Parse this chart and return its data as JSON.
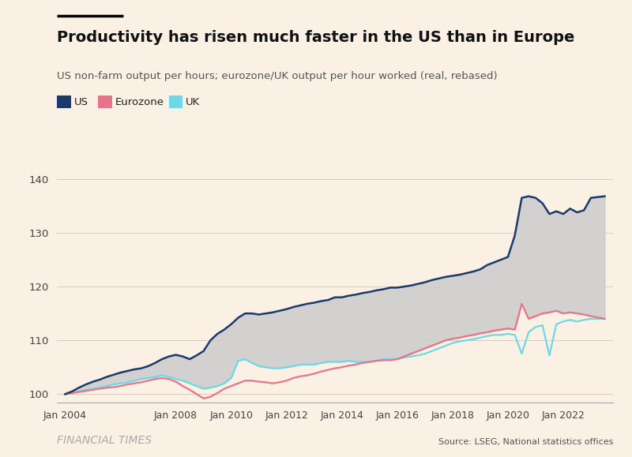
{
  "title": "Productivity has risen much faster in the US than in Europe",
  "subtitle": "US non-farm output per hours; eurozone/UK output per hour worked (real, rebased)",
  "source": "Source: LSEG, National statistics offices",
  "footer": "FINANCIAL TIMES",
  "background_color": "#FAF0E4",
  "us_color": "#1B3A6B",
  "eurozone_color": "#E8748A",
  "uk_color": "#6DD9E8",
  "fill_color": "#CCCCCC",
  "ylim": [
    98.5,
    141
  ],
  "yticks": [
    100,
    110,
    120,
    130,
    140
  ],
  "xtick_positions": [
    2004,
    2008,
    2010,
    2012,
    2014,
    2016,
    2018,
    2020,
    2022
  ],
  "xlabel_dates": [
    "Jan 2004",
    "Jan 2008",
    "Jan 2010",
    "Jan 2012",
    "Jan 2014",
    "Jan 2016",
    "Jan 2018",
    "Jan 2020",
    "Jan 2022"
  ],
  "xlim": [
    2003.7,
    2023.8
  ],
  "us_data": {
    "t": [
      2004.0,
      2004.25,
      2004.5,
      2004.75,
      2005.0,
      2005.25,
      2005.5,
      2005.75,
      2006.0,
      2006.25,
      2006.5,
      2006.75,
      2007.0,
      2007.25,
      2007.5,
      2007.75,
      2008.0,
      2008.25,
      2008.5,
      2008.75,
      2009.0,
      2009.25,
      2009.5,
      2009.75,
      2010.0,
      2010.25,
      2010.5,
      2010.75,
      2011.0,
      2011.25,
      2011.5,
      2011.75,
      2012.0,
      2012.25,
      2012.5,
      2012.75,
      2013.0,
      2013.25,
      2013.5,
      2013.75,
      2014.0,
      2014.25,
      2014.5,
      2014.75,
      2015.0,
      2015.25,
      2015.5,
      2015.75,
      2016.0,
      2016.25,
      2016.5,
      2016.75,
      2017.0,
      2017.25,
      2017.5,
      2017.75,
      2018.0,
      2018.25,
      2018.5,
      2018.75,
      2019.0,
      2019.25,
      2019.5,
      2019.75,
      2020.0,
      2020.25,
      2020.5,
      2020.75,
      2021.0,
      2021.25,
      2021.5,
      2021.75,
      2022.0,
      2022.25,
      2022.5,
      2022.75,
      2023.0,
      2023.5
    ],
    "v": [
      100.0,
      100.5,
      101.2,
      101.8,
      102.3,
      102.7,
      103.2,
      103.6,
      104.0,
      104.3,
      104.6,
      104.8,
      105.2,
      105.8,
      106.5,
      107.0,
      107.3,
      107.0,
      106.5,
      107.2,
      108.0,
      110.0,
      111.2,
      112.0,
      113.0,
      114.2,
      115.0,
      115.0,
      114.8,
      115.0,
      115.2,
      115.5,
      115.8,
      116.2,
      116.5,
      116.8,
      117.0,
      117.3,
      117.5,
      118.0,
      118.0,
      118.3,
      118.5,
      118.8,
      119.0,
      119.3,
      119.5,
      119.8,
      119.8,
      120.0,
      120.2,
      120.5,
      120.8,
      121.2,
      121.5,
      121.8,
      122.0,
      122.2,
      122.5,
      122.8,
      123.2,
      124.0,
      124.5,
      125.0,
      125.5,
      129.5,
      136.5,
      136.8,
      136.5,
      135.5,
      133.5,
      134.0,
      133.5,
      134.5,
      133.8,
      134.2,
      136.5,
      136.8
    ]
  },
  "eurozone_data": {
    "t": [
      2004.0,
      2004.25,
      2004.5,
      2004.75,
      2005.0,
      2005.25,
      2005.5,
      2005.75,
      2006.0,
      2006.25,
      2006.5,
      2006.75,
      2007.0,
      2007.25,
      2007.5,
      2007.75,
      2008.0,
      2008.25,
      2008.5,
      2008.75,
      2009.0,
      2009.25,
      2009.5,
      2009.75,
      2010.0,
      2010.25,
      2010.5,
      2010.75,
      2011.0,
      2011.25,
      2011.5,
      2011.75,
      2012.0,
      2012.25,
      2012.5,
      2012.75,
      2013.0,
      2013.25,
      2013.5,
      2013.75,
      2014.0,
      2014.25,
      2014.5,
      2014.75,
      2015.0,
      2015.25,
      2015.5,
      2015.75,
      2016.0,
      2016.25,
      2016.5,
      2016.75,
      2017.0,
      2017.25,
      2017.5,
      2017.75,
      2018.0,
      2018.25,
      2018.5,
      2018.75,
      2019.0,
      2019.25,
      2019.5,
      2019.75,
      2020.0,
      2020.25,
      2020.5,
      2020.75,
      2021.0,
      2021.25,
      2021.5,
      2021.75,
      2022.0,
      2022.25,
      2022.5,
      2022.75,
      2023.0,
      2023.5
    ],
    "v": [
      100.0,
      100.2,
      100.4,
      100.6,
      100.8,
      101.0,
      101.2,
      101.3,
      101.5,
      101.8,
      102.0,
      102.2,
      102.5,
      102.8,
      103.0,
      102.8,
      102.3,
      101.5,
      100.8,
      100.0,
      99.2,
      99.5,
      100.2,
      101.0,
      101.5,
      102.0,
      102.5,
      102.5,
      102.3,
      102.2,
      102.0,
      102.2,
      102.5,
      103.0,
      103.3,
      103.5,
      103.8,
      104.2,
      104.5,
      104.8,
      105.0,
      105.3,
      105.5,
      105.8,
      106.0,
      106.2,
      106.3,
      106.3,
      106.5,
      107.0,
      107.5,
      108.0,
      108.5,
      109.0,
      109.5,
      110.0,
      110.3,
      110.5,
      110.8,
      111.0,
      111.3,
      111.5,
      111.8,
      112.0,
      112.2,
      112.0,
      116.8,
      114.0,
      114.5,
      115.0,
      115.2,
      115.5,
      115.0,
      115.2,
      115.0,
      114.8,
      114.5,
      114.0
    ]
  },
  "uk_data": {
    "t": [
      2004.0,
      2004.25,
      2004.5,
      2004.75,
      2005.0,
      2005.25,
      2005.5,
      2005.75,
      2006.0,
      2006.25,
      2006.5,
      2006.75,
      2007.0,
      2007.25,
      2007.5,
      2007.75,
      2008.0,
      2008.25,
      2008.5,
      2008.75,
      2009.0,
      2009.25,
      2009.5,
      2009.75,
      2010.0,
      2010.25,
      2010.5,
      2010.75,
      2011.0,
      2011.25,
      2011.5,
      2011.75,
      2012.0,
      2012.25,
      2012.5,
      2012.75,
      2013.0,
      2013.25,
      2013.5,
      2013.75,
      2014.0,
      2014.25,
      2014.5,
      2014.75,
      2015.0,
      2015.25,
      2015.5,
      2015.75,
      2016.0,
      2016.25,
      2016.5,
      2016.75,
      2017.0,
      2017.25,
      2017.5,
      2017.75,
      2018.0,
      2018.25,
      2018.5,
      2018.75,
      2019.0,
      2019.25,
      2019.5,
      2019.75,
      2020.0,
      2020.25,
      2020.5,
      2020.75,
      2021.0,
      2021.25,
      2021.5,
      2021.75,
      2022.0,
      2022.25,
      2022.5,
      2022.75,
      2023.0,
      2023.5
    ],
    "v": [
      100.0,
      100.2,
      100.5,
      100.8,
      101.0,
      101.2,
      101.5,
      101.8,
      102.0,
      102.2,
      102.5,
      102.8,
      103.0,
      103.2,
      103.5,
      103.2,
      102.8,
      102.5,
      102.0,
      101.5,
      101.0,
      101.2,
      101.5,
      102.0,
      103.0,
      106.2,
      106.5,
      105.8,
      105.2,
      105.0,
      104.8,
      104.8,
      105.0,
      105.2,
      105.5,
      105.5,
      105.5,
      105.8,
      106.0,
      106.0,
      106.0,
      106.2,
      106.0,
      106.0,
      106.0,
      106.2,
      106.5,
      106.5,
      106.5,
      106.8,
      107.0,
      107.2,
      107.5,
      108.0,
      108.5,
      109.0,
      109.5,
      109.8,
      110.0,
      110.2,
      110.5,
      110.8,
      111.0,
      111.0,
      111.2,
      111.0,
      107.5,
      111.5,
      112.5,
      112.8,
      107.2,
      113.0,
      113.5,
      113.8,
      113.5,
      113.8,
      114.0,
      114.0
    ]
  }
}
